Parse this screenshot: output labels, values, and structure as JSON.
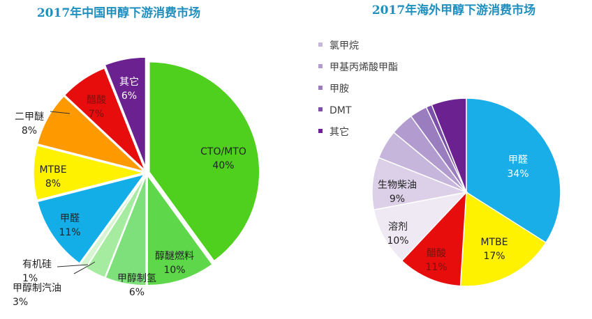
{
  "chart_data": [
    {
      "type": "pie",
      "title": "2017年中国甲醇下游消费市场",
      "colors": {
        "title": "#1f8fbf"
      },
      "slices": [
        {
          "name": "CTO/MTO",
          "value": 40,
          "label": "40%",
          "color": "#4fcf1e",
          "label_color": "#222222"
        },
        {
          "name": "醇醚燃料",
          "value": 10,
          "label": "10%",
          "color": "#5ed84a",
          "label_color": "#222222"
        },
        {
          "name": "甲醇制氢",
          "value": 6,
          "label": "6%",
          "color": "#7ee07a",
          "label_color": "#222222"
        },
        {
          "name": "甲醇制汽油",
          "value": 3,
          "label": "3%",
          "color": "#a6eca0",
          "label_color": "#222222"
        },
        {
          "name": "有机硅",
          "value": 1,
          "label": "1%",
          "color": "#d6f5d0",
          "label_color": "#222222"
        },
        {
          "name": "甲醛",
          "value": 11,
          "label": "11%",
          "color": "#13aee8",
          "label_color": "#222222"
        },
        {
          "name": "MTBE",
          "value": 8,
          "label": "8%",
          "color": "#fff200",
          "label_color": "#222222"
        },
        {
          "name": "二甲醚",
          "value": 8,
          "label": "8%",
          "color": "#ff9900",
          "label_color": "#222222"
        },
        {
          "name": "醋酸",
          "value": 7,
          "label": "7%",
          "color": "#e80d0d",
          "label_color": "#7a1010"
        },
        {
          "name": "其它",
          "value": 6,
          "label": "6%",
          "color": "#6b2290",
          "label_color": "#ffffff"
        }
      ]
    },
    {
      "type": "pie",
      "title": "2017年海外甲醇下游消费市场",
      "colors": {
        "title": "#1f8fbf"
      },
      "legend_position": "top-left",
      "slices": [
        {
          "name": "甲醛",
          "value": 34,
          "label": "34%",
          "color": "#1aaee8",
          "label_color": "#ffffff"
        },
        {
          "name": "MTBE",
          "value": 17,
          "label": "17%",
          "color": "#fff200",
          "label_color": "#222222"
        },
        {
          "name": "醋酸",
          "value": 11,
          "label": "11%",
          "color": "#e80d0d",
          "label_color": "#7a1010"
        },
        {
          "name": "溶剂",
          "value": 10,
          "label": "10%",
          "color": "#efe9f4",
          "label_color": "#222222"
        },
        {
          "name": "生物柴油",
          "value": 9,
          "label": "9%",
          "color": "#dcd0e8",
          "label_color": "#222222"
        },
        {
          "name": "氯甲烷",
          "value": 5,
          "label": "",
          "color": "#c7b6dc",
          "label_color": "#222222"
        },
        {
          "name": "甲基丙烯酸甲酯",
          "value": 4,
          "label": "",
          "color": "#b29ccf",
          "label_color": "#222222"
        },
        {
          "name": "甲胺",
          "value": 3,
          "label": "",
          "color": "#9a7dbf",
          "label_color": "#222222"
        },
        {
          "name": "DMT",
          "value": 1,
          "label": "",
          "color": "#7c4fa8",
          "label_color": "#222222"
        },
        {
          "name": "其它",
          "value": 6,
          "label": "",
          "color": "#6b2290",
          "label_color": "#222222"
        }
      ],
      "legend": [
        {
          "name": "氯甲烷",
          "color": "#c7b6dc"
        },
        {
          "name": "甲基丙烯酸甲酯",
          "color": "#b29ccf"
        },
        {
          "name": "甲胺",
          "color": "#9a7dbf"
        },
        {
          "name": "DMT",
          "color": "#7c4fa8"
        },
        {
          "name": "其它",
          "color": "#6b2290"
        }
      ]
    }
  ]
}
